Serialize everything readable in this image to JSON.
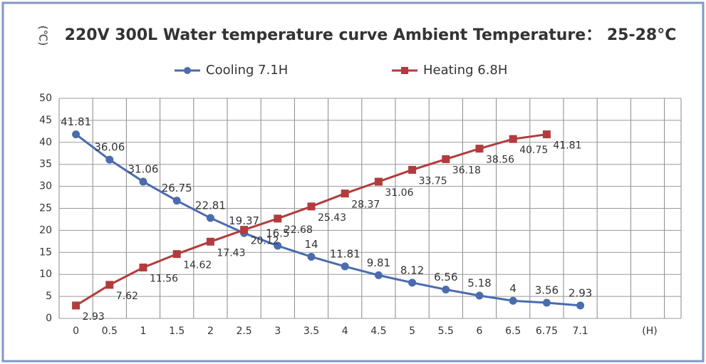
{
  "chart_data": {
    "type": "line",
    "title": "220V 300L Water temperature curve  Ambient Temperature：  25-28°C",
    "y_label": "(℃)",
    "x_label": "(H)",
    "categories": [
      "0",
      "0.5",
      "1",
      "1.5",
      "2",
      "2.5",
      "3",
      "3.5",
      "4",
      "4.5",
      "5",
      "5.5",
      "6",
      "6.5",
      "6.75",
      "7.1"
    ],
    "series": [
      {
        "name": "Cooling 7.1H",
        "color": "#4a6cae",
        "marker": "circle",
        "values": [
          41.81,
          36.06,
          31.06,
          26.75,
          22.81,
          19.37,
          16.5,
          14,
          11.81,
          9.81,
          8.12,
          6.56,
          5.18,
          4,
          3.56,
          2.93
        ]
      },
      {
        "name": "Heating 6.8H",
        "color": "#b23b3d",
        "marker": "square",
        "values": [
          2.93,
          7.62,
          11.56,
          14.62,
          17.43,
          20.12,
          22.68,
          25.43,
          28.37,
          31.06,
          33.75,
          36.18,
          38.56,
          40.75,
          41.81,
          null
        ]
      }
    ],
    "ylim": [
      0,
      50
    ],
    "yticks": [
      0,
      5,
      10,
      15,
      20,
      25,
      30,
      35,
      40,
      45,
      50
    ],
    "grid": true,
    "legend": "top"
  }
}
